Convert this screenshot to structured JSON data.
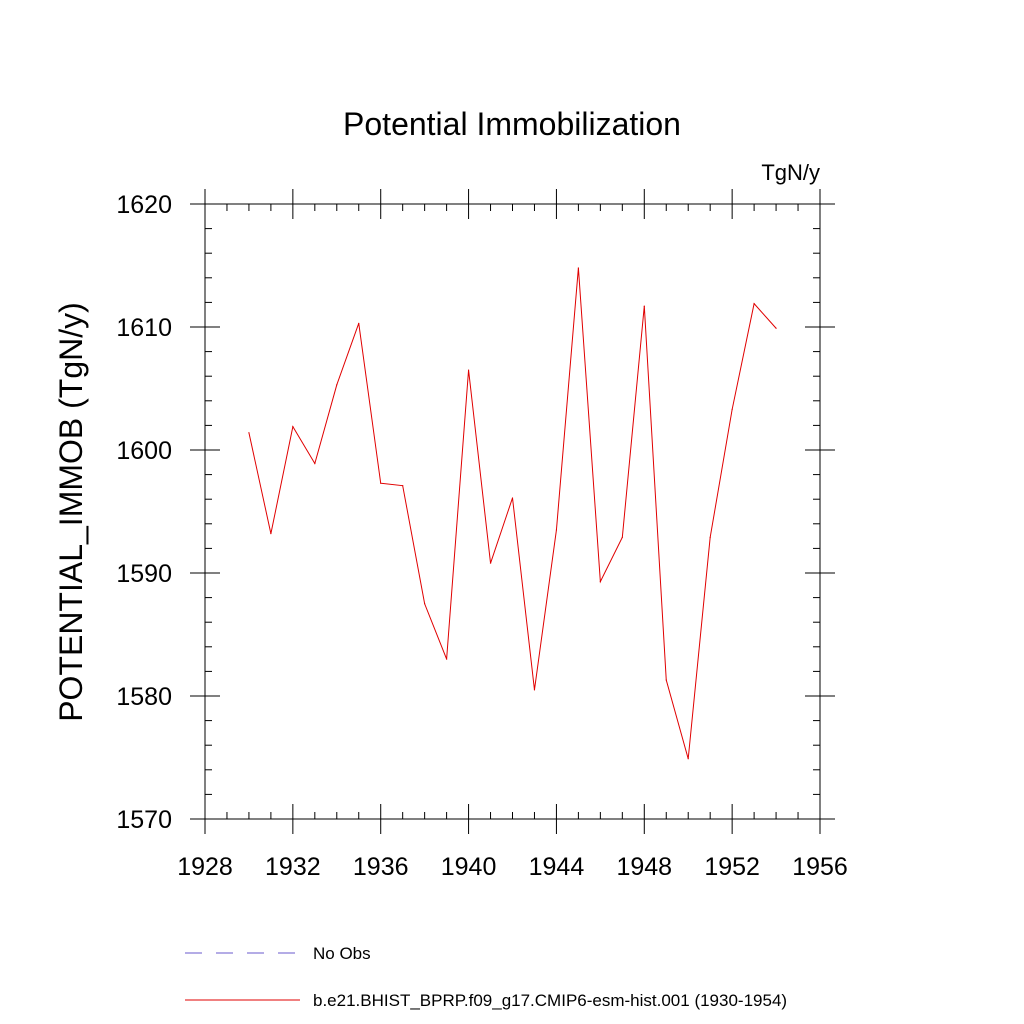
{
  "chart_data": {
    "type": "line",
    "title": "Potential Immobilization",
    "units_label": "TgN/y",
    "ylabel": "POTENTIAL_IMMOB  (TgN/y)",
    "xlabel": "",
    "xlim": [
      1928,
      1956
    ],
    "ylim": [
      1570,
      1620
    ],
    "x_ticks": [
      1928,
      1932,
      1936,
      1940,
      1944,
      1948,
      1952,
      1956
    ],
    "x_tick_labels": [
      "1928",
      "1932",
      "1936",
      "1940",
      "1944",
      "1948",
      "1952",
      "1956"
    ],
    "y_ticks": [
      1570,
      1580,
      1590,
      1600,
      1610,
      1620
    ],
    "y_tick_labels": [
      "1570",
      "1580",
      "1590",
      "1600",
      "1610",
      "1620"
    ],
    "grid": false,
    "legend_position": "bottom",
    "series": [
      {
        "name": "b.e21.BHIST_BPRP.f09_g17.CMIP6-esm-hist.001 (1930-1954)",
        "color": "#e00000",
        "line_style": "solid",
        "x": [
          1930,
          1931,
          1932,
          1933,
          1934,
          1935,
          1936,
          1937,
          1938,
          1939,
          1940,
          1941,
          1942,
          1943,
          1944,
          1945,
          1946,
          1947,
          1948,
          1949,
          1950,
          1951,
          1952,
          1953,
          1954
        ],
        "values": [
          1601.4,
          1593.2,
          1601.9,
          1598.9,
          1605.3,
          1610.3,
          1597.3,
          1597.1,
          1587.5,
          1583.0,
          1606.5,
          1590.8,
          1596.1,
          1580.5,
          1593.5,
          1614.8,
          1589.3,
          1592.9,
          1611.7,
          1581.3,
          1574.9,
          1592.9,
          1603.3,
          1611.9,
          1609.9
        ]
      }
    ],
    "legend": [
      {
        "label": "No Obs",
        "color": "#6a5acd",
        "line_style": "dashed"
      },
      {
        "label": "b.e21.BHIST_BPRP.f09_g17.CMIP6-esm-hist.001 (1930-1954)",
        "color": "#e00000",
        "line_style": "solid"
      }
    ]
  }
}
